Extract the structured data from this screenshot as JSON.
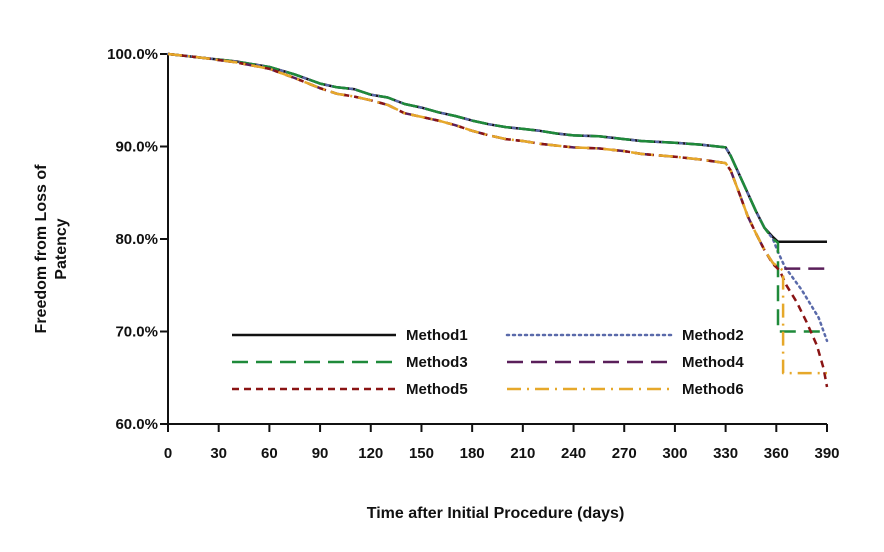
{
  "chart_data": {
    "type": "line",
    "title": "",
    "xlabel": "Time after Initial Procedure (days)",
    "ylabel_lines": [
      "Freedom from Loss of",
      "Patency"
    ],
    "xlim": [
      0,
      390
    ],
    "ylim": [
      60,
      100
    ],
    "x_ticks": [
      0,
      30,
      60,
      90,
      120,
      150,
      180,
      210,
      240,
      270,
      300,
      330,
      360,
      390
    ],
    "x_tick_labels": [
      "0",
      "30",
      "60",
      "90",
      "120",
      "150",
      "180",
      "210",
      "240",
      "270",
      "300",
      "330",
      "360",
      "390"
    ],
    "y_ticks": [
      60,
      70,
      80,
      90,
      100
    ],
    "y_tick_labels": [
      "60.0%",
      "70.0%",
      "80.0%",
      "90.0%",
      "100.0%"
    ],
    "grid": false,
    "legend_position": "bottom-center",
    "series": [
      {
        "name": "Method1",
        "color": "#111111",
        "dash": "solid",
        "points": [
          [
            0,
            100
          ],
          [
            20,
            99.6
          ],
          [
            40,
            99.2
          ],
          [
            60,
            98.6
          ],
          [
            75,
            97.8
          ],
          [
            90,
            96.8
          ],
          [
            100,
            96.4
          ],
          [
            110,
            96.2
          ],
          [
            120,
            95.6
          ],
          [
            130,
            95.3
          ],
          [
            140,
            94.6
          ],
          [
            150,
            94.2
          ],
          [
            160,
            93.7
          ],
          [
            170,
            93.3
          ],
          [
            180,
            92.8
          ],
          [
            190,
            92.4
          ],
          [
            200,
            92.1
          ],
          [
            210,
            91.9
          ],
          [
            220,
            91.7
          ],
          [
            230,
            91.4
          ],
          [
            240,
            91.2
          ],
          [
            255,
            91.1
          ],
          [
            270,
            90.8
          ],
          [
            280,
            90.6
          ],
          [
            300,
            90.4
          ],
          [
            315,
            90.2
          ],
          [
            330,
            89.9
          ],
          [
            333,
            89.0
          ],
          [
            338,
            87.0
          ],
          [
            343,
            85.0
          ],
          [
            348,
            83.0
          ],
          [
            353,
            81.2
          ],
          [
            358,
            80.2
          ],
          [
            361,
            79.7
          ],
          [
            390,
            79.7
          ]
        ]
      },
      {
        "name": "Method2",
        "color": "#5a6aaa",
        "dash": "dotted",
        "points": [
          [
            0,
            100
          ],
          [
            20,
            99.6
          ],
          [
            40,
            99.2
          ],
          [
            60,
            98.6
          ],
          [
            75,
            97.8
          ],
          [
            90,
            96.8
          ],
          [
            100,
            96.4
          ],
          [
            110,
            96.2
          ],
          [
            120,
            95.6
          ],
          [
            130,
            95.3
          ],
          [
            140,
            94.6
          ],
          [
            150,
            94.2
          ],
          [
            160,
            93.7
          ],
          [
            170,
            93.3
          ],
          [
            180,
            92.8
          ],
          [
            190,
            92.4
          ],
          [
            200,
            92.1
          ],
          [
            210,
            91.9
          ],
          [
            220,
            91.7
          ],
          [
            230,
            91.4
          ],
          [
            240,
            91.2
          ],
          [
            255,
            91.1
          ],
          [
            270,
            90.8
          ],
          [
            280,
            90.6
          ],
          [
            300,
            90.4
          ],
          [
            315,
            90.2
          ],
          [
            330,
            89.9
          ],
          [
            333,
            89.0
          ],
          [
            338,
            87.0
          ],
          [
            343,
            85.0
          ],
          [
            348,
            83.0
          ],
          [
            353,
            81.2
          ],
          [
            358,
            80.0
          ],
          [
            361,
            78.6
          ],
          [
            365,
            77.0
          ],
          [
            375,
            74.5
          ],
          [
            385,
            71.5
          ],
          [
            390,
            69.0
          ]
        ]
      },
      {
        "name": "Method3",
        "color": "#1f8a3a",
        "dash": "long-dash",
        "points": [
          [
            0,
            100
          ],
          [
            20,
            99.6
          ],
          [
            40,
            99.2
          ],
          [
            60,
            98.6
          ],
          [
            75,
            97.8
          ],
          [
            90,
            96.8
          ],
          [
            100,
            96.4
          ],
          [
            110,
            96.2
          ],
          [
            120,
            95.6
          ],
          [
            130,
            95.3
          ],
          [
            140,
            94.6
          ],
          [
            150,
            94.2
          ],
          [
            160,
            93.7
          ],
          [
            170,
            93.3
          ],
          [
            180,
            92.8
          ],
          [
            190,
            92.4
          ],
          [
            200,
            92.1
          ],
          [
            210,
            91.9
          ],
          [
            220,
            91.7
          ],
          [
            230,
            91.4
          ],
          [
            240,
            91.2
          ],
          [
            255,
            91.1
          ],
          [
            270,
            90.8
          ],
          [
            280,
            90.6
          ],
          [
            300,
            90.4
          ],
          [
            315,
            90.2
          ],
          [
            330,
            89.9
          ],
          [
            333,
            89.0
          ],
          [
            338,
            87.0
          ],
          [
            343,
            85.0
          ],
          [
            348,
            83.0
          ],
          [
            353,
            81.2
          ],
          [
            358,
            80.0
          ],
          [
            361,
            79.6
          ],
          [
            361,
            70.0
          ],
          [
            390,
            70.0
          ]
        ]
      },
      {
        "name": "Method4",
        "color": "#5a1f5a",
        "dash": "long-dash",
        "points": [
          [
            0,
            100
          ],
          [
            20,
            99.6
          ],
          [
            40,
            99.1
          ],
          [
            60,
            98.4
          ],
          [
            75,
            97.4
          ],
          [
            90,
            96.3
          ],
          [
            100,
            95.7
          ],
          [
            110,
            95.4
          ],
          [
            120,
            95.0
          ],
          [
            130,
            94.5
          ],
          [
            140,
            93.6
          ],
          [
            150,
            93.2
          ],
          [
            160,
            92.8
          ],
          [
            170,
            92.3
          ],
          [
            180,
            91.7
          ],
          [
            190,
            91.2
          ],
          [
            200,
            90.8
          ],
          [
            210,
            90.6
          ],
          [
            220,
            90.3
          ],
          [
            230,
            90.1
          ],
          [
            240,
            89.9
          ],
          [
            255,
            89.8
          ],
          [
            270,
            89.5
          ],
          [
            280,
            89.2
          ],
          [
            300,
            88.9
          ],
          [
            315,
            88.6
          ],
          [
            330,
            88.2
          ],
          [
            333,
            87.4
          ],
          [
            338,
            85.0
          ],
          [
            343,
            82.5
          ],
          [
            348,
            80.6
          ],
          [
            353,
            78.8
          ],
          [
            358,
            77.4
          ],
          [
            361,
            76.8
          ],
          [
            390,
            76.8
          ]
        ]
      },
      {
        "name": "Method5",
        "color": "#8a1414",
        "dash": "short-dash",
        "points": [
          [
            0,
            100
          ],
          [
            20,
            99.6
          ],
          [
            40,
            99.1
          ],
          [
            60,
            98.4
          ],
          [
            75,
            97.4
          ],
          [
            90,
            96.3
          ],
          [
            100,
            95.7
          ],
          [
            110,
            95.4
          ],
          [
            120,
            95.0
          ],
          [
            130,
            94.5
          ],
          [
            140,
            93.6
          ],
          [
            150,
            93.2
          ],
          [
            160,
            92.8
          ],
          [
            170,
            92.3
          ],
          [
            180,
            91.7
          ],
          [
            190,
            91.2
          ],
          [
            200,
            90.8
          ],
          [
            210,
            90.6
          ],
          [
            220,
            90.3
          ],
          [
            230,
            90.1
          ],
          [
            240,
            89.9
          ],
          [
            255,
            89.8
          ],
          [
            270,
            89.5
          ],
          [
            280,
            89.2
          ],
          [
            300,
            88.9
          ],
          [
            315,
            88.6
          ],
          [
            330,
            88.2
          ],
          [
            333,
            87.4
          ],
          [
            338,
            85.0
          ],
          [
            343,
            82.5
          ],
          [
            348,
            80.6
          ],
          [
            353,
            78.8
          ],
          [
            358,
            77.3
          ],
          [
            362,
            76.6
          ],
          [
            366,
            75.0
          ],
          [
            372,
            73.2
          ],
          [
            378,
            71.0
          ],
          [
            384,
            68.5
          ],
          [
            388,
            66.0
          ],
          [
            390,
            64.0
          ]
        ]
      },
      {
        "name": "Method6",
        "color": "#e6a82a",
        "dash": "dash-dot",
        "points": [
          [
            0,
            100
          ],
          [
            20,
            99.6
          ],
          [
            40,
            99.1
          ],
          [
            60,
            98.4
          ],
          [
            75,
            97.4
          ],
          [
            90,
            96.3
          ],
          [
            100,
            95.7
          ],
          [
            110,
            95.4
          ],
          [
            120,
            95.0
          ],
          [
            130,
            94.5
          ],
          [
            140,
            93.6
          ],
          [
            150,
            93.2
          ],
          [
            160,
            92.8
          ],
          [
            170,
            92.3
          ],
          [
            180,
            91.7
          ],
          [
            190,
            91.2
          ],
          [
            200,
            90.8
          ],
          [
            210,
            90.6
          ],
          [
            220,
            90.3
          ],
          [
            230,
            90.1
          ],
          [
            240,
            89.9
          ],
          [
            255,
            89.8
          ],
          [
            270,
            89.5
          ],
          [
            280,
            89.2
          ],
          [
            300,
            88.9
          ],
          [
            315,
            88.6
          ],
          [
            330,
            88.2
          ],
          [
            333,
            87.4
          ],
          [
            338,
            85.0
          ],
          [
            343,
            82.5
          ],
          [
            348,
            80.6
          ],
          [
            353,
            78.8
          ],
          [
            358,
            77.4
          ],
          [
            364,
            76.6
          ],
          [
            364,
            65.5
          ],
          [
            390,
            65.5
          ]
        ]
      }
    ],
    "legend_layout": [
      {
        "series": "Method1",
        "col": 0,
        "row": 0
      },
      {
        "series": "Method2",
        "col": 1,
        "row": 0
      },
      {
        "series": "Method3",
        "col": 0,
        "row": 1
      },
      {
        "series": "Method4",
        "col": 1,
        "row": 1
      },
      {
        "series": "Method5",
        "col": 0,
        "row": 2
      },
      {
        "series": "Method6",
        "col": 1,
        "row": 2
      }
    ]
  }
}
